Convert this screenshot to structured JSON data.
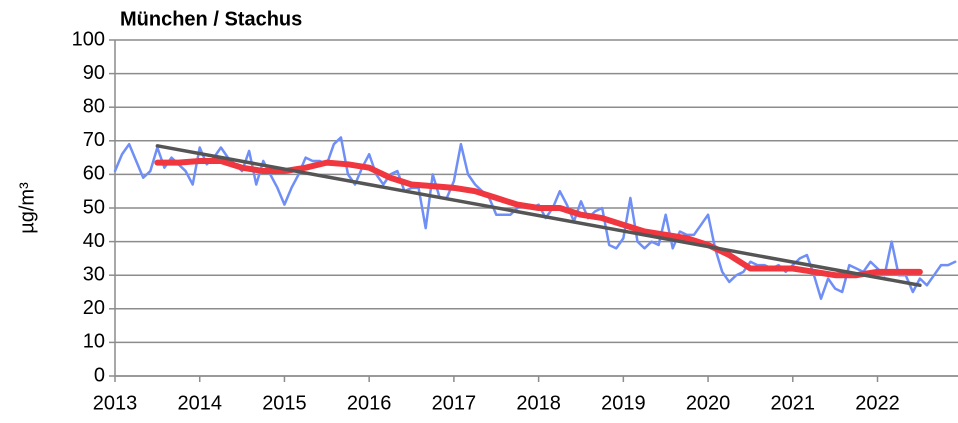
{
  "chart_data": {
    "type": "line",
    "title": "München / Stachus",
    "y_label": "µg/m³",
    "xlim": [
      2013,
      2022.95
    ],
    "xticks": [
      2013,
      2014,
      2015,
      2016,
      2017,
      2018,
      2019,
      2020,
      2021,
      2022
    ],
    "ylim": [
      0,
      100
    ],
    "yticks": [
      0,
      10,
      20,
      30,
      40,
      50,
      60,
      70,
      80,
      90,
      100
    ],
    "grid": true,
    "series": [
      {
        "color": "#6f8ff7",
        "width": 2.5,
        "x": [
          2013,
          2013.083,
          2013.167,
          2013.25,
          2013.333,
          2013.417,
          2013.5,
          2013.583,
          2013.667,
          2013.75,
          2013.833,
          2013.917,
          2014,
          2014.083,
          2014.167,
          2014.25,
          2014.333,
          2014.417,
          2014.5,
          2014.583,
          2014.667,
          2014.75,
          2014.833,
          2014.917,
          2015,
          2015.083,
          2015.167,
          2015.25,
          2015.333,
          2015.417,
          2015.5,
          2015.583,
          2015.667,
          2015.75,
          2015.833,
          2015.917,
          2016,
          2016.083,
          2016.167,
          2016.25,
          2016.333,
          2016.417,
          2016.5,
          2016.583,
          2016.667,
          2016.75,
          2016.833,
          2016.917,
          2017,
          2017.083,
          2017.167,
          2017.25,
          2017.333,
          2017.417,
          2017.5,
          2017.583,
          2017.667,
          2017.75,
          2017.833,
          2017.917,
          2018,
          2018.083,
          2018.167,
          2018.25,
          2018.333,
          2018.417,
          2018.5,
          2018.583,
          2018.667,
          2018.75,
          2018.833,
          2018.917,
          2019,
          2019.083,
          2019.167,
          2019.25,
          2019.333,
          2019.417,
          2019.5,
          2019.583,
          2019.667,
          2019.75,
          2019.833,
          2019.917,
          2020,
          2020.083,
          2020.167,
          2020.25,
          2020.333,
          2020.417,
          2020.5,
          2020.583,
          2020.667,
          2020.75,
          2020.833,
          2020.917,
          2021,
          2021.083,
          2021.167,
          2021.25,
          2021.333,
          2021.417,
          2021.5,
          2021.583,
          2021.667,
          2021.75,
          2021.833,
          2021.917,
          2022,
          2022.083,
          2022.167,
          2022.25,
          2022.333,
          2022.417,
          2022.5,
          2022.583,
          2022.667,
          2022.75,
          2022.833,
          2022.917
        ],
        "values": [
          61,
          66,
          69,
          64,
          59,
          61,
          68,
          62,
          65,
          63,
          61,
          57,
          68,
          63,
          65,
          68,
          65,
          63,
          61,
          67,
          57,
          64,
          60,
          56,
          51,
          56,
          60,
          65,
          64,
          64,
          63,
          69,
          71,
          60,
          57,
          62,
          66,
          60,
          57,
          60,
          61,
          55,
          56,
          56,
          44,
          60,
          53,
          53,
          58,
          69,
          60,
          57,
          55,
          53,
          48,
          48,
          48,
          50,
          51,
          50,
          51,
          47,
          50,
          55,
          51,
          46,
          52,
          47,
          49,
          50,
          39,
          38,
          41,
          53,
          40,
          38,
          40,
          39,
          48,
          38,
          43,
          42,
          42,
          45,
          48,
          38,
          31,
          28,
          30,
          31,
          34,
          33,
          33,
          32,
          33,
          31,
          33,
          35,
          36,
          30,
          23,
          29,
          26,
          25,
          33,
          32,
          31,
          34,
          32,
          30,
          40,
          30,
          30,
          25,
          29,
          27,
          30,
          33,
          33,
          34
        ]
      },
      {
        "color": "#f0373f",
        "width": 6,
        "x": [
          2013.5,
          2013.75,
          2014,
          2014.25,
          2014.5,
          2014.75,
          2015,
          2015.25,
          2015.5,
          2015.75,
          2016,
          2016.25,
          2016.5,
          2016.75,
          2017,
          2017.25,
          2017.5,
          2017.75,
          2018,
          2018.25,
          2018.5,
          2018.75,
          2019,
          2019.25,
          2019.5,
          2019.75,
          2020,
          2020.25,
          2020.5,
          2020.75,
          2021,
          2021.25,
          2021.5,
          2021.75,
          2022,
          2022.25,
          2022.5
        ],
        "values": [
          63.5,
          63.5,
          64,
          64,
          62,
          61,
          61,
          62,
          63.5,
          63,
          62,
          59,
          57,
          56.5,
          56,
          55,
          53,
          51,
          50,
          50,
          48,
          47,
          45,
          43,
          42,
          41,
          39,
          36,
          32,
          32,
          32,
          31,
          30,
          30,
          31,
          31,
          31
        ]
      },
      {
        "color": "#555555",
        "width": 3.5,
        "x": [
          2013.5,
          2022.5
        ],
        "values": [
          68.5,
          27
        ]
      }
    ]
  }
}
